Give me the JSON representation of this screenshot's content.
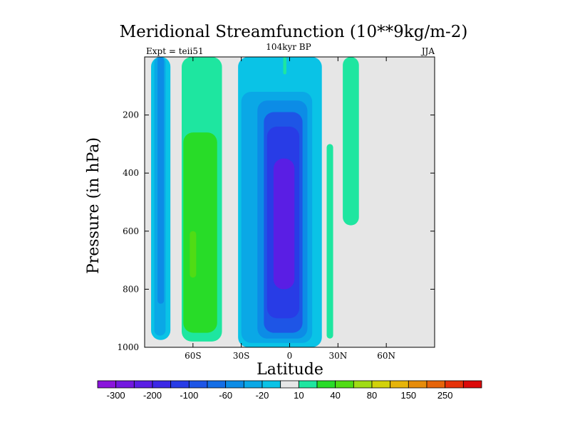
{
  "chart_data": {
    "type": "heatmap",
    "title": "Meridional Streamfunction (10**9kg/m-2)",
    "left_string": "Expt = teii51",
    "center_string": "104kyr BP",
    "right_string": "JJA",
    "xlabel": "Latitude",
    "ylabel": "Pressure (in hPa)",
    "xlim": [
      -90,
      90
    ],
    "ylim": [
      1000,
      0
    ],
    "y_axis_reversed": true,
    "x_ticks": [
      {
        "value": -60,
        "label": "60S"
      },
      {
        "value": -30,
        "label": "30S"
      },
      {
        "value": 0,
        "label": "0"
      },
      {
        "value": 30,
        "label": "30N"
      },
      {
        "value": 60,
        "label": "60N"
      }
    ],
    "y_ticks": [
      {
        "value": 200,
        "label": "200"
      },
      {
        "value": 400,
        "label": "400"
      },
      {
        "value": 600,
        "label": "600"
      },
      {
        "value": 800,
        "label": "800"
      },
      {
        "value": 1000,
        "label": "1000"
      }
    ],
    "background_color": "#e6e6e6",
    "colorbar": {
      "levels": [
        -300,
        -250,
        -200,
        -150,
        -100,
        -80,
        -60,
        -40,
        -20,
        -10,
        10,
        20,
        40,
        60,
        80,
        100,
        150,
        200,
        250,
        300
      ],
      "colors": [
        "#8a14dc",
        "#7318e0",
        "#5a1ee4",
        "#3c28e6",
        "#283ce6",
        "#1e55e6",
        "#146ee6",
        "#0c8ce6",
        "#0aa8e6",
        "#0ac3e6",
        "#e6e6e6",
        "#1ee6a0",
        "#28dc28",
        "#50dc14",
        "#a0dc14",
        "#d2d20a",
        "#e6b40a",
        "#e68c0a",
        "#e6640a",
        "#e6320a",
        "#dc0a0a"
      ],
      "labels": [
        {
          "after_index": 0,
          "text": "-300"
        },
        {
          "after_index": 2,
          "text": "-200"
        },
        {
          "after_index": 4,
          "text": "-100"
        },
        {
          "after_index": 6,
          "text": "-60"
        },
        {
          "after_index": 8,
          "text": "-20"
        },
        {
          "after_index": 10,
          "text": "10"
        },
        {
          "after_index": 12,
          "text": "40"
        },
        {
          "after_index": 14,
          "text": "80"
        },
        {
          "after_index": 16,
          "text": "150"
        },
        {
          "after_index": 18,
          "text": "250"
        }
      ]
    },
    "features": [
      {
        "name": "southern-blue-outer",
        "level_index": 9,
        "lat": [
          -86,
          -74
        ],
        "p": [
          0,
          975
        ]
      },
      {
        "name": "southern-blue-inner",
        "level_index": 8,
        "lat": [
          -84,
          -77
        ],
        "p": [
          0,
          960
        ]
      },
      {
        "name": "southern-blue-core",
        "level_index": 7,
        "lat": [
          -82,
          -78
        ],
        "p": [
          0,
          850
        ]
      },
      {
        "name": "southern-green-outer",
        "level_index": 11,
        "lat": [
          -67,
          -42
        ],
        "p": [
          0,
          980
        ]
      },
      {
        "name": "southern-green-inner",
        "level_index": 12,
        "lat": [
          -66,
          -45
        ],
        "p": [
          260,
          950
        ]
      },
      {
        "name": "southern-green-core",
        "level_index": 13,
        "lat": [
          -62,
          -58
        ],
        "p": [
          600,
          760
        ]
      },
      {
        "name": "equatorial-cell-outer",
        "level_index": 9,
        "lat": [
          -32,
          20
        ],
        "p": [
          0,
          1000
        ]
      },
      {
        "name": "equatorial-cell-l1",
        "level_index": 8,
        "lat": [
          -30,
          14
        ],
        "p": [
          120,
          985
        ]
      },
      {
        "name": "equatorial-cell-l2",
        "level_index": 7,
        "lat": [
          -20,
          11
        ],
        "p": [
          150,
          970
        ]
      },
      {
        "name": "equatorial-cell-l3",
        "level_index": 5,
        "lat": [
          -16,
          8
        ],
        "p": [
          190,
          950
        ]
      },
      {
        "name": "equatorial-cell-l4",
        "level_index": 4,
        "lat": [
          -14,
          6
        ],
        "p": [
          240,
          900
        ]
      },
      {
        "name": "equatorial-cell-core",
        "level_index": 2,
        "lat": [
          -10,
          3
        ],
        "p": [
          350,
          800
        ]
      },
      {
        "name": "northern-green-strip",
        "level_index": 11,
        "lat": [
          23,
          27
        ],
        "p": [
          300,
          970
        ]
      },
      {
        "name": "northern-upper-green",
        "level_index": 11,
        "lat": [
          33,
          43
        ],
        "p": [
          0,
          580
        ]
      },
      {
        "name": "equatorial-top-green",
        "level_index": 11,
        "lat": [
          -4,
          -2
        ],
        "p": [
          0,
          60
        ]
      }
    ]
  }
}
